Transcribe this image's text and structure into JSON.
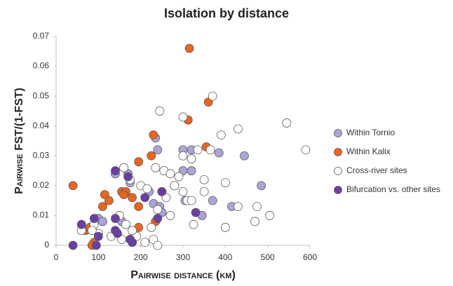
{
  "chart_data": {
    "type": "scatter",
    "title": "Isolation by distance",
    "x_label": "Pairwise distance (km)",
    "y_label": "Pairwise FST/(1-FST)",
    "xlim": [
      0,
      600
    ],
    "xticks": [
      0,
      100,
      200,
      300,
      400,
      500,
      600
    ],
    "ylim": [
      0,
      0.07
    ],
    "yticks": [
      0,
      0.01,
      0.02,
      0.03,
      0.04,
      0.05,
      0.06,
      0.07
    ],
    "grid": false,
    "legend": "right",
    "series": [
      {
        "name": "Within Tornio",
        "color": "#aaa5d6",
        "x": [
          235,
          240,
          300,
          320,
          385,
          445,
          300,
          320,
          140,
          170,
          485,
          175,
          220,
          250,
          230,
          245,
          250,
          345,
          370,
          415,
          100,
          110,
          85,
          155,
          175,
          180,
          305
        ],
        "values": [
          0.036,
          0.032,
          0.032,
          0.032,
          0.031,
          0.03,
          0.025,
          0.025,
          0.024,
          0.024,
          0.02,
          0.021,
          0.018,
          0.018,
          0.014,
          0.013,
          0.011,
          0.01,
          0.015,
          0.013,
          0.009,
          0.008,
          0.006,
          0.008,
          0.002,
          0.001,
          0.015
        ]
      },
      {
        "name": "Within Kalix",
        "color": "#e8661f",
        "x": [
          315,
          360,
          312,
          230,
          355,
          225,
          195,
          40,
          115,
          155,
          165,
          280,
          110,
          125,
          195,
          180,
          235,
          195,
          70,
          80,
          90,
          85,
          160
        ],
        "values": [
          0.066,
          0.048,
          0.042,
          0.037,
          0.033,
          0.03,
          0.028,
          0.02,
          0.017,
          0.018,
          0.018,
          0.02,
          0.013,
          0.015,
          0.013,
          0.016,
          0.008,
          0.006,
          0.005,
          0.006,
          0.001,
          0.0,
          0.017
        ]
      },
      {
        "name": "Cross-river sites",
        "color": "#ffffff",
        "x": [
          370,
          245,
          300,
          545,
          430,
          390,
          590,
          335,
          365,
          300,
          320,
          255,
          235,
          270,
          290,
          350,
          400,
          160,
          175,
          200,
          215,
          280,
          300,
          350,
          260,
          310,
          320,
          430,
          475,
          505,
          470,
          400,
          325,
          270,
          240,
          225,
          230,
          240,
          210,
          190,
          180,
          165,
          150,
          130,
          100,
          90,
          85,
          60,
          155
        ],
        "values": [
          0.05,
          0.045,
          0.043,
          0.041,
          0.039,
          0.037,
          0.032,
          0.032,
          0.032,
          0.03,
          0.029,
          0.025,
          0.026,
          0.024,
          0.023,
          0.022,
          0.021,
          0.026,
          0.022,
          0.02,
          0.019,
          0.02,
          0.018,
          0.018,
          0.016,
          0.015,
          0.015,
          0.013,
          0.013,
          0.01,
          0.008,
          0.006,
          0.007,
          0.01,
          0.012,
          0.006,
          0.002,
          0.0,
          0.001,
          0.003,
          0.005,
          0.007,
          0.01,
          0.003,
          0.004,
          0.007,
          0.005,
          0.005,
          0.002
        ]
      },
      {
        "name": "Bifurcation vs. other sites",
        "color": "#6a3fa3",
        "x": [
          40,
          95,
          60,
          90,
          140,
          170,
          210,
          250,
          240,
          330,
          140,
          140,
          175,
          180,
          100,
          145
        ],
        "values": [
          0.0,
          0.0,
          0.007,
          0.009,
          0.025,
          0.023,
          0.016,
          0.018,
          0.009,
          0.011,
          0.009,
          0.005,
          0.002,
          0.001,
          0.003,
          0.004
        ]
      }
    ]
  }
}
